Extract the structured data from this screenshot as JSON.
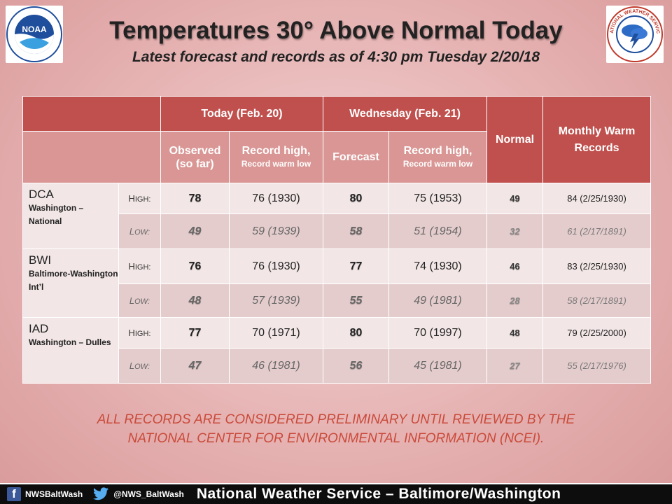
{
  "header": {
    "title": "Temperatures 30° Above Normal  Today",
    "subtitle": "Latest forecast and records as of 4:30 pm Tuesday 2/20/18"
  },
  "logos": {
    "noaa_text": "NOAA",
    "nws_text": "NATIONAL WEATHER SERVICE"
  },
  "table": {
    "groups": {
      "today": "Today (Feb. 20)",
      "wednesday": "Wednesday (Feb. 21)",
      "normal": "Normal",
      "monthly": "Monthly Warm Records"
    },
    "subheaders": {
      "observed": "Observed (so far)",
      "record_high_1": "Record high,",
      "record_warm_low_1": "Record warm low",
      "forecast": "Forecast",
      "record_high_2": "Record high,",
      "record_warm_low_2": "Record warm low"
    },
    "labels": {
      "high_cap": "H",
      "high_rest": "IGH:",
      "low_cap": "L",
      "low_rest": "OW:"
    },
    "sites": [
      {
        "code": "DCA",
        "name": "Washington – National",
        "high": {
          "observed": "78",
          "record1": "76 (1930)",
          "forecast": "80",
          "record2": "75 (1953)",
          "normal": "49",
          "monthly": "84 (2/25/1930)"
        },
        "low": {
          "observed": "49",
          "record1": "59 (1939)",
          "forecast": "58",
          "record2": "51 (1954)",
          "normal": "32",
          "monthly": "61 (2/17/1891)"
        }
      },
      {
        "code": "BWI",
        "name": "Baltimore-Washington Int’l",
        "high": {
          "observed": "76",
          "record1": "76 (1930)",
          "forecast": "77",
          "record2": "74 (1930)",
          "normal": "46",
          "monthly": "83 (2/25/1930)"
        },
        "low": {
          "observed": "48",
          "record1": "57 (1939)",
          "forecast": "55",
          "record2": "49 (1981)",
          "normal": "28",
          "monthly": "58 (2/17/1891)"
        }
      },
      {
        "code": "IAD",
        "name": "Washington – Dulles",
        "high": {
          "observed": "77",
          "record1": "70 (1971)",
          "forecast": "80",
          "record2": "70 (1997)",
          "normal": "48",
          "monthly": "79 (2/25/2000)"
        },
        "low": {
          "observed": "47",
          "record1": "46 (1981)",
          "forecast": "56",
          "record2": "45 (1981)",
          "normal": "27",
          "monthly": "55 (2/17/1976)"
        }
      }
    ]
  },
  "note": {
    "line1": "ALL RECORDS ARE CONSIDERED PRELIMINARY UNTIL REVIEWED BY THE",
    "line2": "NATIONAL CENTER FOR ENVIRONMENTAL INFORMATION (NCEI)."
  },
  "footer": {
    "facebook": "NWSBaltWash",
    "twitter": "@NWS_BaltWash",
    "title": "National Weather Service – Baltimore/Washington"
  },
  "colors": {
    "header_red": "#c0504d",
    "subheader_rose": "#d99694",
    "note_red": "#c94a3a"
  }
}
